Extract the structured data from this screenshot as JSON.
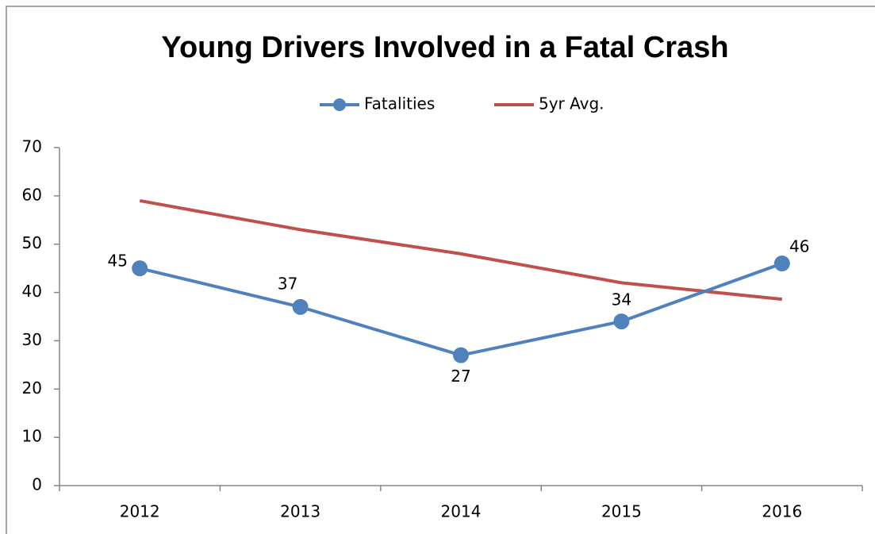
{
  "chart_data": {
    "type": "line",
    "title": "Young Drivers Involved in a Fatal Crash",
    "categories": [
      "2012",
      "2013",
      "2014",
      "2015",
      "2016"
    ],
    "series": [
      {
        "name": "Fatalities",
        "color": "#4f81bd",
        "values": [
          45,
          37,
          27,
          34,
          46
        ],
        "markers": true,
        "data_labels": true
      },
      {
        "name": "5yr Avg.",
        "color": "#c0504d",
        "values": [
          59,
          53,
          48,
          42,
          38.6
        ],
        "markers": false,
        "data_labels": false
      }
    ],
    "ylim": [
      0,
      70
    ],
    "yticks": [
      0,
      10,
      20,
      30,
      40,
      50,
      60,
      70
    ],
    "grid": false,
    "legend": "top"
  }
}
